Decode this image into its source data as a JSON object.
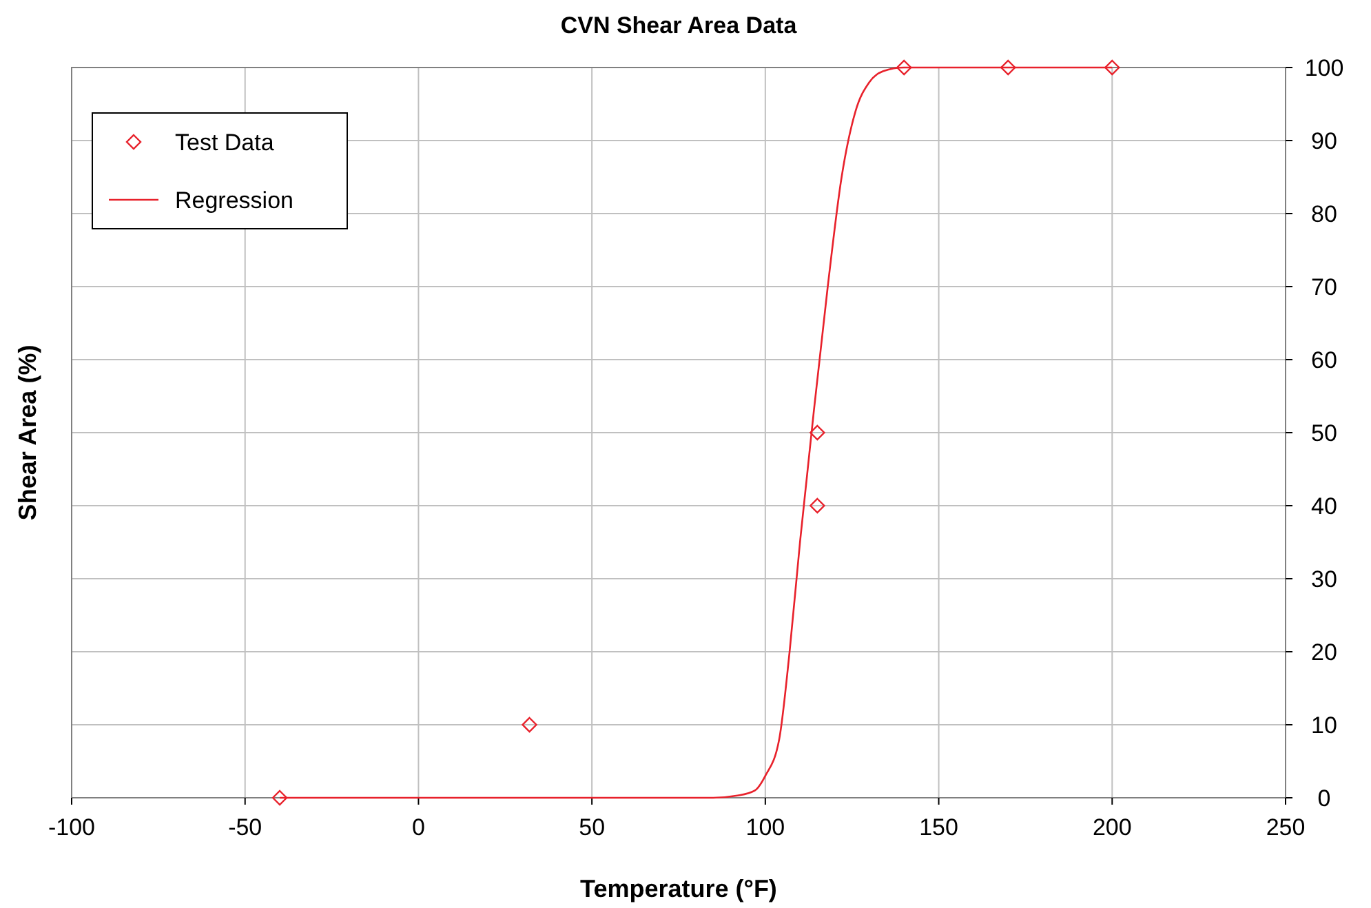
{
  "chart_data": {
    "type": "scatter",
    "title": "CVN Shear Area Data",
    "xlabel": "Temperature (°F)",
    "ylabel": "Shear Area (%)",
    "xlim": [
      -100,
      250
    ],
    "xticks": [
      -100,
      -50,
      0,
      50,
      100,
      150,
      200,
      250
    ],
    "ylim": [
      0,
      100
    ],
    "yticks": [
      0,
      10,
      20,
      30,
      40,
      50,
      60,
      70,
      80,
      90,
      100
    ],
    "grid": true,
    "legend": "top left",
    "series": [
      {
        "name": "Test Data",
        "type": "scatter",
        "marker": "diamond",
        "color": "#e8212b",
        "x": [
          -40,
          32,
          115,
          115,
          140,
          170,
          200
        ],
        "values": [
          0,
          10,
          40,
          50,
          100,
          100,
          100
        ]
      },
      {
        "name": "Regression",
        "type": "line",
        "marker": "none",
        "line_style": "solid",
        "color": "#e8212b",
        "x": [
          -40,
          0,
          50,
          85,
          92,
          97,
          100,
          104,
          107,
          110,
          112,
          114,
          118,
          122,
          126,
          130,
          134,
          140,
          170,
          200
        ],
        "values": [
          0,
          0,
          0,
          0,
          0.3,
          1,
          3,
          8,
          20,
          35,
          44,
          53,
          70,
          85,
          94,
          98,
          99.5,
          100,
          100,
          100
        ]
      }
    ]
  }
}
